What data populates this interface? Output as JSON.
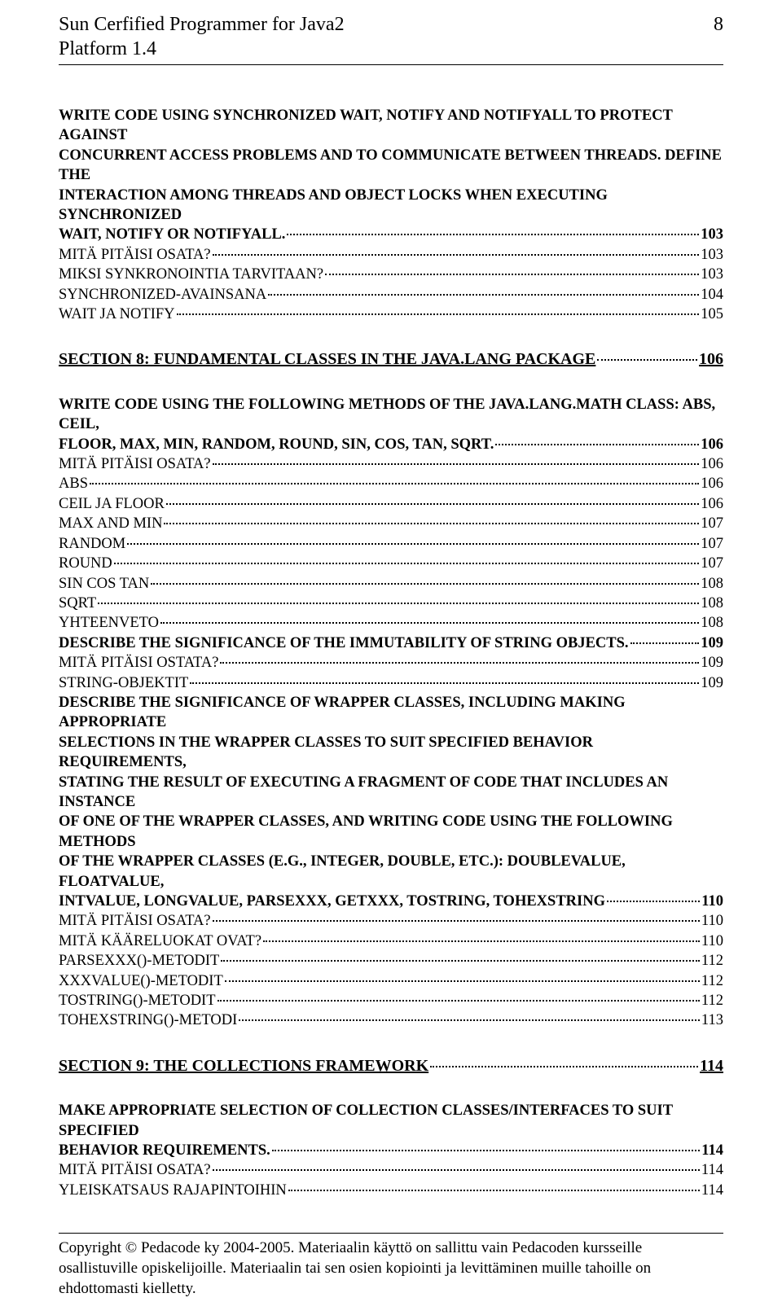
{
  "header": {
    "title_line1": "Sun Cerfified Programmer for Java2",
    "title_line2": "Platform 1.4",
    "page_number": "8"
  },
  "block1": {
    "text_l1": "WRITE CODE USING SYNCHRONIZED WAIT, NOTIFY AND NOTIFYALL TO PROTECT AGAINST",
    "text_l2": "CONCURRENT ACCESS PROBLEMS AND TO COMMUNICATE BETWEEN THREADS. DEFINE THE",
    "text_l3": "INTERACTION AMONG THREADS AND OBJECT LOCKS WHEN EXECUTING SYNCHRONIZED",
    "text_l4": "WAIT, NOTIFY OR NOTIFYALL.",
    "page": "103"
  },
  "entries1": [
    {
      "text": "MITÄ PITÄISI OSATA?",
      "page": "103"
    },
    {
      "text": "MIKSI SYNKRONOINTIA TARVITAAN?",
      "page": "103"
    },
    {
      "text": "SYNCHRONIZED-AVAINSANA",
      "page": "104"
    },
    {
      "text": "WAIT JA NOTIFY",
      "page": "105"
    }
  ],
  "section8": {
    "title": "SECTION 8: FUNDAMENTAL CLASSES IN THE JAVA.LANG PACKAGE",
    "page": "106"
  },
  "block2": {
    "text_l1": "WRITE CODE USING THE FOLLOWING METHODS OF THE JAVA.LANG.MATH CLASS: ABS, CEIL,",
    "text_l2": "FLOOR, MAX, MIN, RANDOM, ROUND, SIN, COS, TAN, SQRT.",
    "page": "106"
  },
  "entries2": [
    {
      "text": "MITÄ PITÄISI OSATA?",
      "page": "106"
    },
    {
      "text": "ABS",
      "page": "106"
    },
    {
      "text": "CEIL JA FLOOR",
      "page": "106"
    },
    {
      "text": "MAX AND MIN",
      "page": "107"
    },
    {
      "text": "RANDOM",
      "page": "107"
    },
    {
      "text": "ROUND",
      "page": "107"
    },
    {
      "text": "SIN COS TAN",
      "page": "108"
    },
    {
      "text": "SQRT",
      "page": "108"
    },
    {
      "text": "YHTEENVETO",
      "page": "108"
    },
    {
      "text": "DESCRIBE THE SIGNIFICANCE OF THE IMMUTABILITY OF STRING OBJECTS.",
      "page": "109",
      "bold": true
    },
    {
      "text": "MITÄ PITÄISI OSTATA?",
      "page": "109"
    },
    {
      "text": "STRING-OBJEKTIT",
      "page": "109"
    }
  ],
  "block3": {
    "l1": "DESCRIBE THE SIGNIFICANCE OF WRAPPER CLASSES, INCLUDING MAKING APPROPRIATE",
    "l2": "SELECTIONS IN THE WRAPPER CLASSES TO SUIT SPECIFIED BEHAVIOR REQUIREMENTS,",
    "l3": "STATING THE RESULT OF EXECUTING A FRAGMENT OF CODE THAT INCLUDES AN INSTANCE",
    "l4": "OF ONE OF THE WRAPPER CLASSES, AND WRITING CODE USING THE FOLLOWING METHODS",
    "l5": "OF THE WRAPPER CLASSES (E.G., INTEGER, DOUBLE, ETC.): DOUBLEVALUE, FLOATVALUE,",
    "l6": "INTVALUE, LONGVALUE, PARSEXXX, GETXXX, TOSTRING, TOHEXSTRING",
    "page": "110"
  },
  "entries3": [
    {
      "text": "MITÄ PITÄISI OSATA?",
      "page": "110"
    },
    {
      "text": "MITÄ KÄÄRELUOKAT OVAT?",
      "page": "110"
    },
    {
      "text": "PARSEXXX()-METODIT",
      "page": "112"
    },
    {
      "text": "XXXVALUE()-METODIT",
      "page": "112"
    },
    {
      "text": "TOSTRING()-METODIT",
      "page": "112"
    },
    {
      "text": "TOHEXSTRING()-METODI",
      "page": "113"
    }
  ],
  "section9": {
    "title": "SECTION 9: THE COLLECTIONS FRAMEWORK",
    "page": "114"
  },
  "block4": {
    "l1": "MAKE APPROPRIATE SELECTION OF COLLECTION CLASSES/INTERFACES TO SUIT SPECIFIED",
    "l2": "BEHAVIOR REQUIREMENTS.",
    "page": "114"
  },
  "entries4": [
    {
      "text": "MITÄ PITÄISI OSATA?",
      "page": "114"
    },
    {
      "text": "YLEISKATSAUS RAJAPINTOIHIN",
      "page": "114"
    }
  ],
  "footer": {
    "text": "Copyright © Pedacode ky 2004-2005. Materiaalin käyttö on sallittu vain Pedacoden kursseille osallistuville opiskelijoille. Materiaalin tai sen osien kopiointi ja levittäminen muille tahoille on ehdottomasti kielletty."
  }
}
